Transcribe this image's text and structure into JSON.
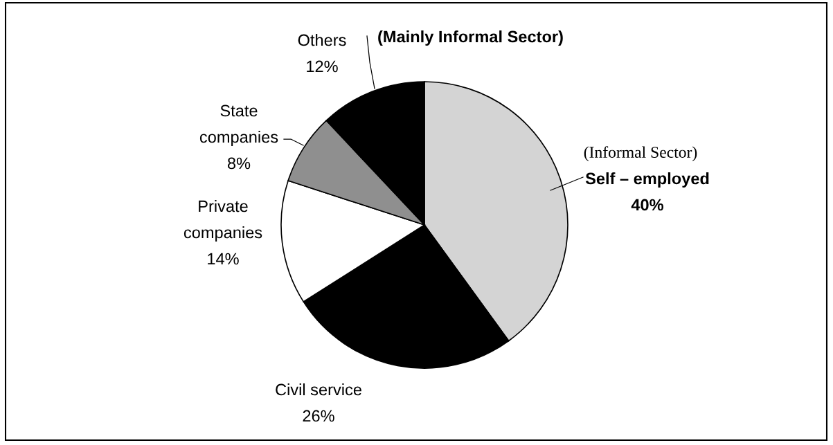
{
  "chart_data": {
    "type": "pie",
    "categories": [
      "Self – employed",
      "Civil service",
      "Private\ncompanies",
      "State\ncompanies",
      "Others"
    ],
    "values": [
      40,
      26,
      14,
      8,
      12
    ],
    "value_labels": [
      "40%",
      "26%",
      "14%",
      "8%",
      "12%"
    ],
    "colors": [
      "#d4d4d4",
      "#000000",
      "#ffffff",
      "#8f8f8f",
      "#000000"
    ],
    "annotations": [
      "(Mainly Informal Sector)",
      "(Informal Sector)"
    ],
    "legend": false
  }
}
